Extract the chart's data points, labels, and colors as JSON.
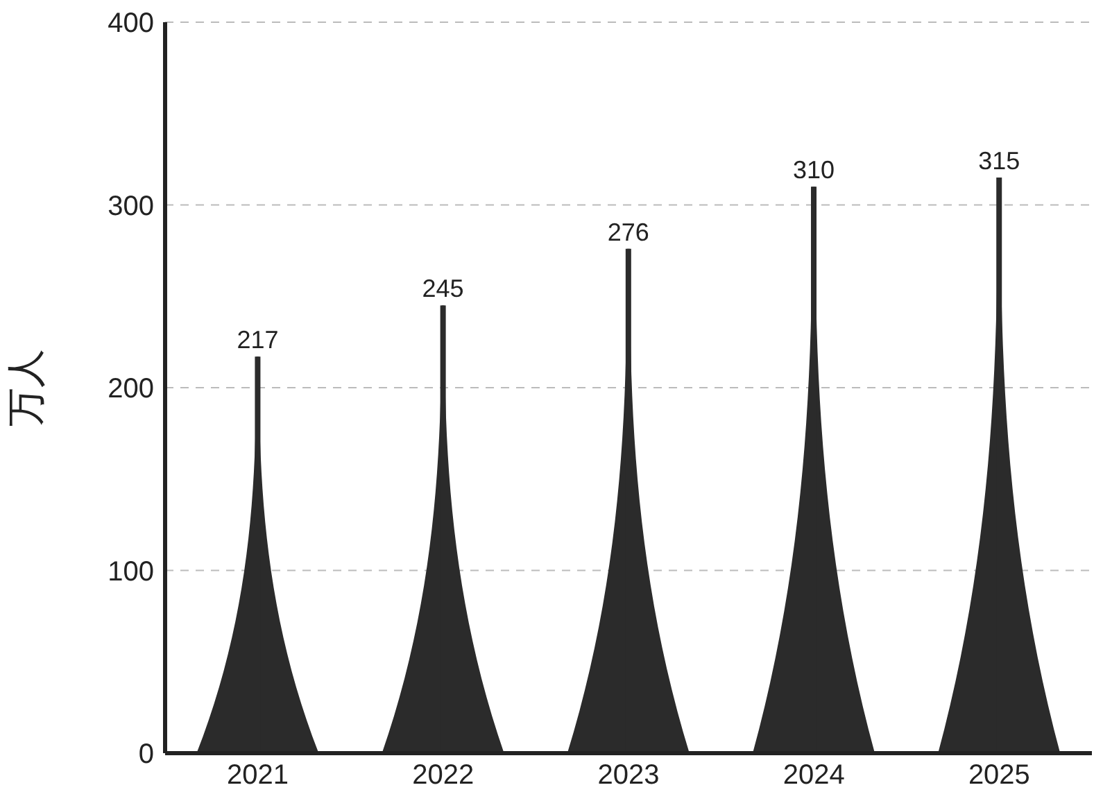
{
  "chart_data": {
    "type": "bar",
    "ylabel": "万人",
    "categories": [
      "2021",
      "2022",
      "2023",
      "2024",
      "2025"
    ],
    "values": [
      217,
      245,
      276,
      310,
      315
    ],
    "color": "#2b2b2b",
    "ylim": [
      0,
      400
    ],
    "yticks": [
      0,
      100,
      200,
      300,
      400
    ],
    "grid": "y",
    "data_labels": true
  }
}
